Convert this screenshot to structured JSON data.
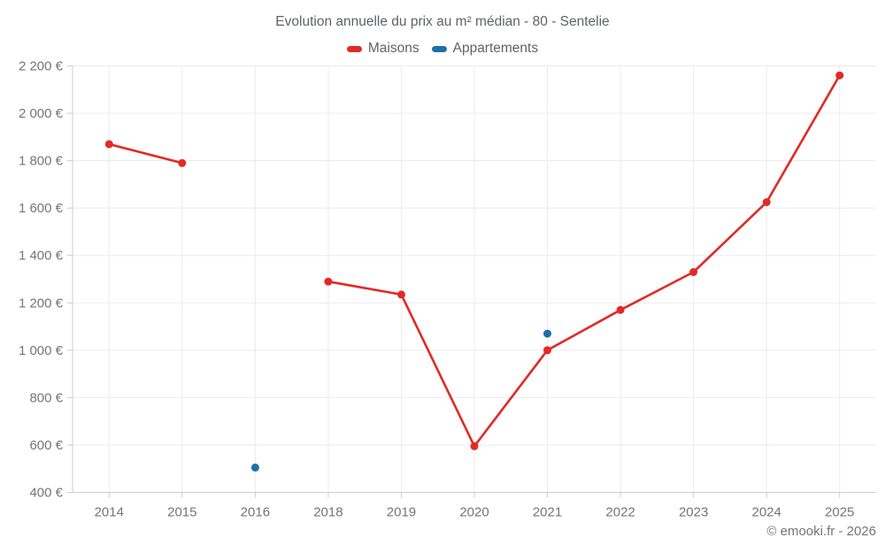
{
  "chart": {
    "title": "Evolution annuelle du prix au m² médian - 80 - Sentelie"
  },
  "footer": {
    "copyright": "© emooki.fr - 2026"
  },
  "chart_data": {
    "type": "line",
    "title": "Evolution annuelle du prix au m² médian - 80 - Sentelie",
    "categories": [
      "2014",
      "2015",
      "2016",
      "2018",
      "2019",
      "2020",
      "2021",
      "2022",
      "2023",
      "2024",
      "2025"
    ],
    "series": [
      {
        "name": "Maisons",
        "color": "#e12a26",
        "values": [
          1870,
          1790,
          null,
          1290,
          1235,
          595,
          1000,
          1170,
          1330,
          1625,
          2160
        ]
      },
      {
        "name": "Appartements",
        "color": "#1c70a8",
        "values": [
          null,
          null,
          505,
          null,
          null,
          null,
          1070,
          null,
          null,
          null,
          null
        ]
      }
    ],
    "ylim": [
      400,
      2200
    ],
    "ytick_step": 200,
    "y_tick_labels": [
      "400 €",
      "600 €",
      "800 €",
      "1 000 €",
      "1 200 €",
      "1 400 €",
      "1 600 €",
      "1 800 €",
      "2 000 €",
      "2 200 €"
    ],
    "xlabel": "",
    "ylabel": "",
    "grid": "both",
    "legend_position": "top",
    "grid_color": "#ebebeb",
    "axis_color": "#cdcdcd",
    "label_color": "#757575"
  }
}
